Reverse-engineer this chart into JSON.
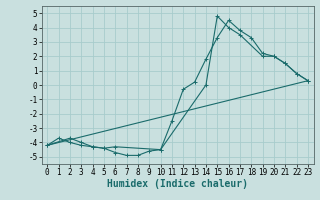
{
  "xlabel": "Humidex (Indice chaleur)",
  "ylabel": "",
  "xlim": [
    -0.5,
    23.5
  ],
  "ylim": [
    -5.5,
    5.5
  ],
  "yticks": [
    -5,
    -4,
    -3,
    -2,
    -1,
    0,
    1,
    2,
    3,
    4,
    5
  ],
  "xticks": [
    0,
    1,
    2,
    3,
    4,
    5,
    6,
    7,
    8,
    9,
    10,
    11,
    12,
    13,
    14,
    15,
    16,
    17,
    18,
    19,
    20,
    21,
    22,
    23
  ],
  "bg_color": "#c9e0df",
  "grid_color": "#a8cccc",
  "line_color": "#1a6b6b",
  "tick_fontsize": 5.5,
  "xlabel_fontsize": 7,
  "lines": [
    {
      "x": [
        0,
        1,
        2,
        3,
        4,
        5,
        6,
        7,
        8,
        9,
        10,
        11,
        12,
        13,
        14,
        15,
        16,
        17,
        18,
        19,
        20,
        21,
        22,
        23
      ],
      "y": [
        -4.2,
        -3.7,
        -4.0,
        -4.2,
        -4.3,
        -4.4,
        -4.7,
        -4.9,
        -4.9,
        -4.6,
        -4.5,
        -2.5,
        -0.3,
        0.2,
        1.8,
        3.3,
        4.5,
        3.8,
        3.3,
        2.2,
        2.0,
        1.5,
        0.8,
        0.3
      ],
      "marker": "+"
    },
    {
      "x": [
        0,
        2,
        3,
        4,
        5,
        6,
        10,
        14,
        15,
        16,
        17,
        19,
        20,
        21,
        22,
        23
      ],
      "y": [
        -4.2,
        -3.7,
        -4.0,
        -4.3,
        -4.4,
        -4.3,
        -4.5,
        0.0,
        4.8,
        4.0,
        3.5,
        2.0,
        2.0,
        1.5,
        0.8,
        0.3
      ],
      "marker": "+"
    },
    {
      "x": [
        0,
        23
      ],
      "y": [
        -4.2,
        0.3
      ],
      "marker": null
    }
  ]
}
